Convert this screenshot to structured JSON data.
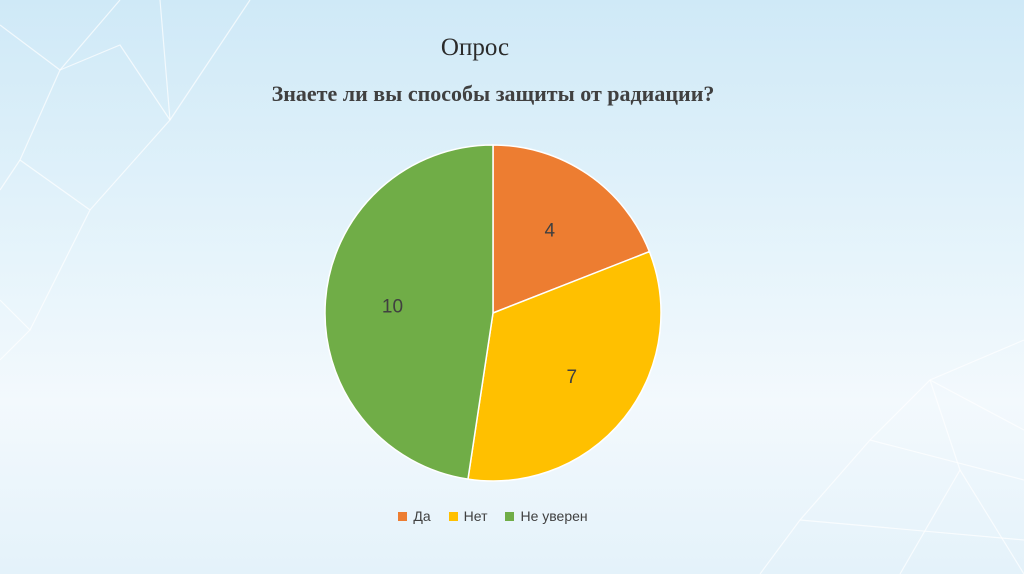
{
  "slide": {
    "title": "Опрос"
  },
  "chart_data": {
    "type": "pie",
    "title": "Знаете ли вы способы защиты от радиации?",
    "categories": [
      "Да",
      "Нет",
      "Не уверен"
    ],
    "values": [
      4,
      7,
      10
    ],
    "data_labels": [
      "4",
      "7",
      "10"
    ],
    "colors": [
      "#ED7D31",
      "#FFC000",
      "#70AD47"
    ],
    "legend_position": "bottom",
    "start_angle_deg": 0,
    "direction": "clockwise"
  }
}
